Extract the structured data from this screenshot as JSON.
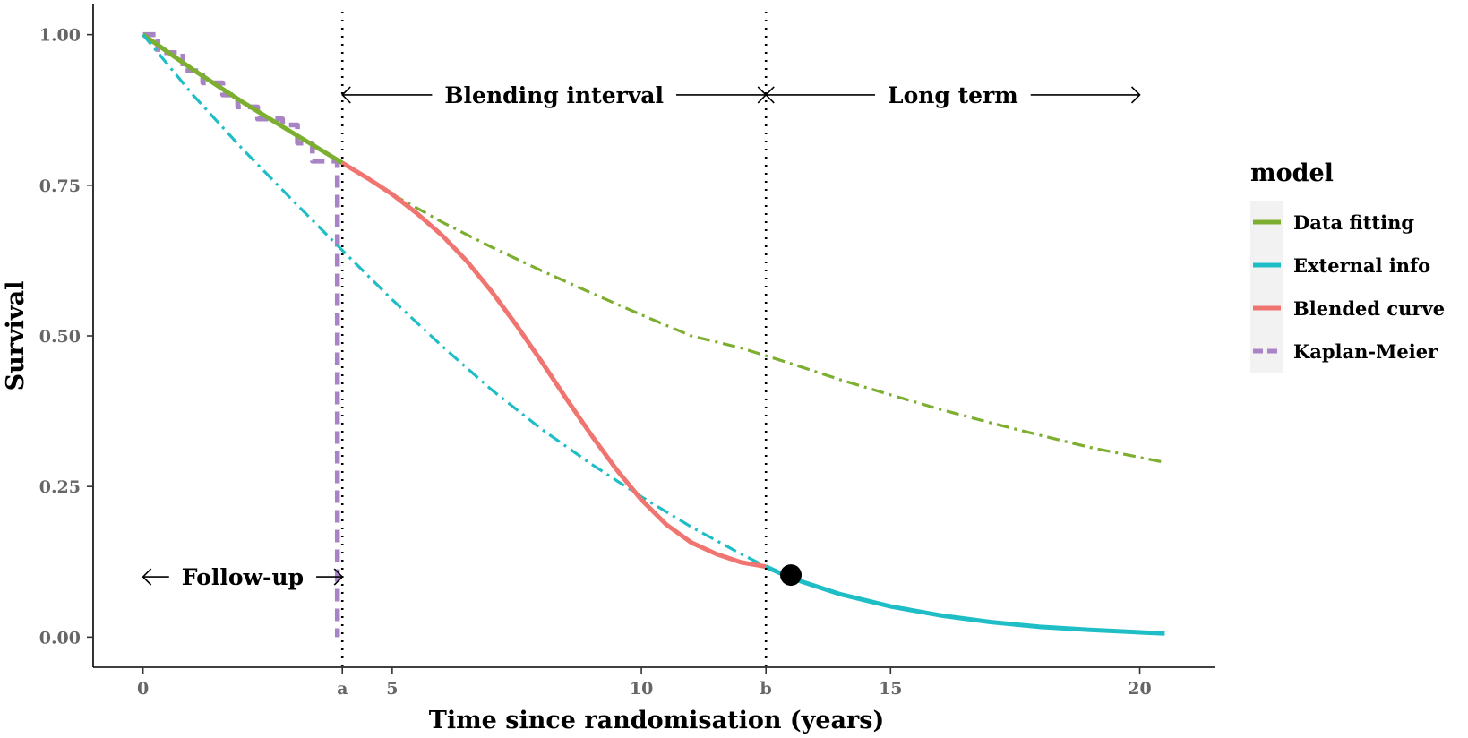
{
  "chart_data": {
    "type": "line",
    "xlabel": "Time since randomisation (years)",
    "ylabel": "Survival",
    "xlim": [
      -1,
      21.5
    ],
    "ylim": [
      -0.05,
      1.05
    ],
    "x_ticks": [
      {
        "value": 0,
        "label": "0"
      },
      {
        "value": 4,
        "label": "a"
      },
      {
        "value": 5,
        "label": "5"
      },
      {
        "value": 10,
        "label": "10"
      },
      {
        "value": 12.5,
        "label": "b"
      },
      {
        "value": 15,
        "label": "15"
      },
      {
        "value": 20,
        "label": "20"
      }
    ],
    "y_ticks": [
      {
        "value": 0,
        "label": "0.00"
      },
      {
        "value": 0.25,
        "label": "0.25"
      },
      {
        "value": 0.5,
        "label": "0.50"
      },
      {
        "value": 0.75,
        "label": "0.75"
      },
      {
        "value": 1,
        "label": "1.00"
      }
    ],
    "grid": false,
    "legend": {
      "title": "model",
      "position": "right",
      "entries": [
        {
          "label": "Data fitting",
          "color": "#7CAE2F",
          "style": "solid"
        },
        {
          "label": "External info",
          "color": "#1FBEC6",
          "style": "solid"
        },
        {
          "label": "Blended curve",
          "color": "#F07470",
          "style": "solid"
        },
        {
          "label": "Kaplan-Meier",
          "color": "#A883C6",
          "style": "dashed"
        }
      ]
    },
    "series": [
      {
        "name": "Data fitting",
        "color": "#7CAE2F",
        "segments": [
          {
            "style": "solid",
            "x": [
              0,
              1,
              2,
              3,
              4
            ],
            "y": [
              1.0,
              0.942,
              0.888,
              0.837,
              0.787
            ]
          },
          {
            "style": "dashdot",
            "x": [
              5,
              6,
              7,
              8,
              9,
              10,
              11,
              12,
              13,
              14,
              15,
              16,
              17,
              18,
              19,
              20.5
            ],
            "y": [
              0.735,
              0.689,
              0.647,
              0.608,
              0.571,
              0.535,
              0.5,
              0.48,
              0.454,
              0.427,
              0.402,
              0.378,
              0.356,
              0.335,
              0.315,
              0.29
            ]
          }
        ]
      },
      {
        "name": "External info",
        "color": "#1FBEC6",
        "segments": [
          {
            "style": "dashdot",
            "x": [
              0,
              1,
              2,
              3,
              4,
              5,
              6,
              7,
              8,
              9,
              10,
              11,
              12,
              12.5
            ],
            "y": [
              1.0,
              0.9,
              0.81,
              0.725,
              0.642,
              0.56,
              0.483,
              0.41,
              0.345,
              0.287,
              0.233,
              0.183,
              0.138,
              0.117
            ]
          },
          {
            "style": "solid",
            "x": [
              12.5,
              13,
              14,
              15,
              16,
              17,
              18,
              19,
              20,
              20.5
            ],
            "y": [
              0.117,
              0.098,
              0.071,
              0.051,
              0.036,
              0.025,
              0.017,
              0.012,
              0.008,
              0.006
            ]
          }
        ]
      },
      {
        "name": "Blended curve",
        "color": "#F07470",
        "segments": [
          {
            "style": "solid",
            "x": [
              4,
              4.5,
              5,
              5.5,
              6,
              6.5,
              7,
              7.5,
              8,
              8.5,
              9,
              9.5,
              10,
              10.5,
              11,
              11.5,
              12,
              12.5
            ],
            "y": [
              0.787,
              0.762,
              0.735,
              0.703,
              0.667,
              0.624,
              0.573,
              0.517,
              0.457,
              0.395,
              0.335,
              0.278,
              0.228,
              0.187,
              0.157,
              0.138,
              0.124,
              0.117
            ]
          }
        ]
      },
      {
        "name": "Kaplan-Meier",
        "color": "#A883C6",
        "segments": [
          {
            "style": "dashed",
            "x": [
              0,
              0.3,
              0.3,
              0.8,
              0.8,
              1.2,
              1.2,
              1.6,
              1.6,
              1.9,
              1.9,
              2.3,
              2.3,
              2.8,
              2.8,
              3.1,
              3.1,
              3.4,
              3.4,
              3.9,
              3.9
            ],
            "y": [
              1.0,
              1.0,
              0.97,
              0.97,
              0.94,
              0.94,
              0.92,
              0.92,
              0.9,
              0.9,
              0.88,
              0.88,
              0.86,
              0.86,
              0.85,
              0.85,
              0.82,
              0.82,
              0.79,
              0.79,
              0.0
            ]
          }
        ]
      }
    ],
    "markers": [
      {
        "x": 13.0,
        "y": 0.103,
        "color": "#000000"
      }
    ],
    "vlines": [
      {
        "x": 4,
        "style": "dotted"
      },
      {
        "x": 12.5,
        "style": "dotted"
      }
    ],
    "annotations": [
      {
        "text": "Blending interval",
        "arrow_from": 4,
        "arrow_to": 12.5,
        "y": 0.9
      },
      {
        "text": "Long term",
        "arrow_from": 12.5,
        "arrow_to": 20,
        "y": 0.9
      },
      {
        "text": "Follow-up",
        "arrow_from": 0,
        "arrow_to": 4,
        "y": 0.1
      }
    ]
  }
}
